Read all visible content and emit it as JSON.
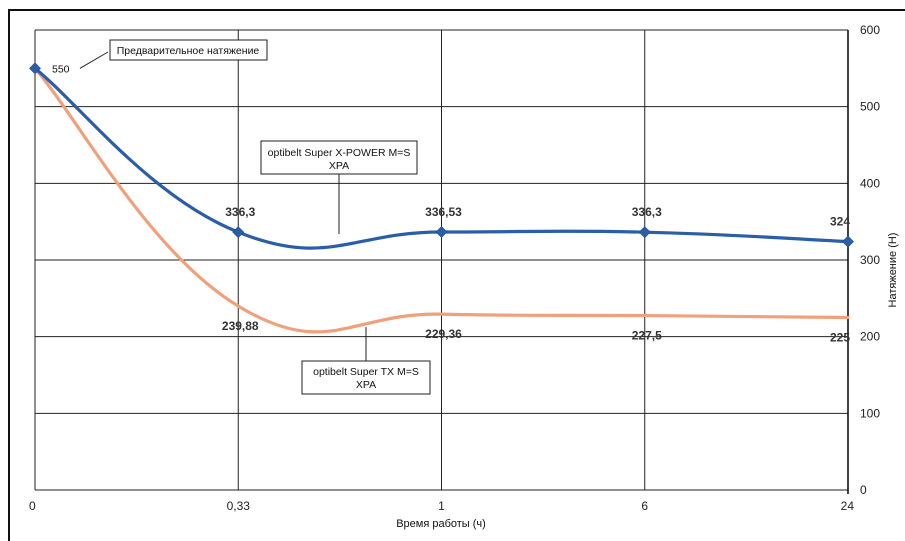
{
  "chart_data": {
    "type": "line",
    "categories": [
      "0",
      "0,33",
      "1",
      "6",
      "24"
    ],
    "series": [
      {
        "values": [
          550,
          336.3,
          336.53,
          336.3,
          324
        ],
        "labels": [
          "550",
          "336,3",
          "336,53",
          "336,3",
          "324"
        ],
        "color": "#2a5ea8",
        "annotation": [
          "optibelt Super X-POWER M=S",
          "XPA"
        ]
      },
      {
        "values": [
          550,
          239.88,
          229.36,
          227.5,
          225
        ],
        "labels": [
          "",
          "239,88",
          "229,36",
          "227,5",
          "225"
        ],
        "color": "#f0a07a",
        "annotation": [
          "optibelt Super TX M=S",
          "XPA"
        ]
      }
    ],
    "xlabel": "Время работы (ч)",
    "ylabel": "Натяжение (Н)",
    "ylim": [
      0,
      600
    ],
    "yticks": [
      "0",
      "100",
      "200",
      "300",
      "400",
      "500",
      "600"
    ],
    "y_axis_side": "right",
    "grid": true,
    "annotations": {
      "initial": "Предварительное натяжение"
    }
  }
}
